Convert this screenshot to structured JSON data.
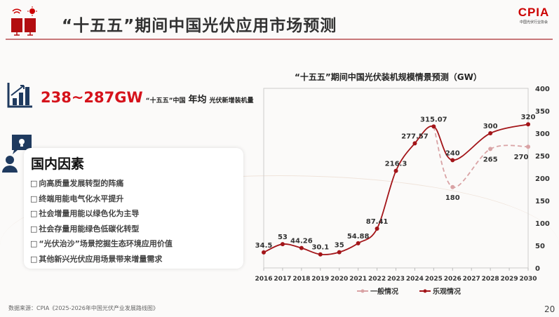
{
  "header": {
    "title": "“十五五”期间中国光伏应用市场预测",
    "logo_text": "CPIA",
    "logo_sub": "中国光伏行业协会"
  },
  "stat": {
    "value": "238~287GW",
    "t1": "“十五五”中国",
    "t2": "年均",
    "t3": "光伏新增装机量"
  },
  "card": {
    "title": "国内因素",
    "items": [
      "向高质量发展转型的阵痛",
      "终端用能电气化水平提升",
      "社会增量用能以绿色化为主导",
      "社会存量用能绿色低碳化转型",
      "“光伏治沙”场景挖掘生态环境应用价值",
      "其他新兴光伏应用场景带来增量需求"
    ]
  },
  "footer": {
    "source": "数据来源：CPIA《2025-2026年中国光伏产业发展路线图》",
    "page": "20"
  },
  "colors": {
    "optimistic": "#a31519",
    "general": "#d9a3a5",
    "accent": "#d5121b",
    "navy": "#1f3a5f"
  },
  "chart_data": {
    "type": "line",
    "title": "“十五五”期间中国光伏装机规模情景预测（GW）",
    "categories": [
      "2016",
      "2017",
      "2018",
      "2019",
      "2020",
      "2021",
      "2022",
      "2023",
      "2024",
      "2025",
      "2026",
      "2027",
      "2028",
      "2029",
      "2030"
    ],
    "ylim": [
      0,
      400
    ],
    "yticks": [
      0,
      50,
      100,
      150,
      200,
      250,
      300,
      350,
      400
    ],
    "y_axis_position": "right",
    "legend_position": "bottom",
    "series": [
      {
        "name": "一般情况",
        "style": "dashed",
        "values": [
          null,
          null,
          null,
          null,
          null,
          null,
          null,
          null,
          null,
          315.07,
          180,
          null,
          265,
          null,
          270
        ],
        "labels": [
          null,
          null,
          null,
          null,
          null,
          null,
          null,
          null,
          null,
          null,
          "180",
          null,
          "265",
          null,
          "270"
        ]
      },
      {
        "name": "乐观情况",
        "style": "solid",
        "values": [
          34.5,
          53,
          44.26,
          30.1,
          35,
          54.88,
          87.41,
          216.3,
          277.57,
          315.07,
          240,
          null,
          300,
          null,
          320
        ],
        "labels": [
          "34.5",
          "53",
          "44.26",
          "30.1",
          "35",
          "54.88",
          "87.41",
          "216.3",
          "277.57",
          "315.07",
          "240",
          null,
          "300",
          null,
          "320"
        ]
      }
    ]
  }
}
